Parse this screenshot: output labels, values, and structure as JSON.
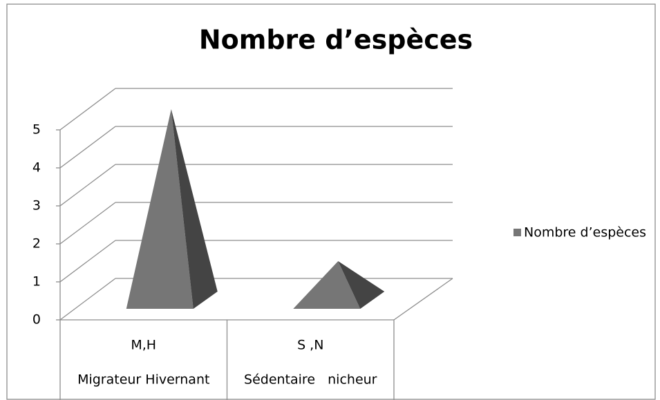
{
  "chart_data": {
    "type": "pyramid3d",
    "title": "Nombre d’espèces",
    "categories": [
      "M,H",
      "S ,N"
    ],
    "category_groups": [
      "Migrateur Hivernant",
      "Sédentaire   nicheur"
    ],
    "series": [
      {
        "name": "Nombre d’espèces",
        "color": "#767676",
        "values": [
          5,
          1
        ]
      }
    ],
    "ylim": [
      0,
      5
    ],
    "yticks": [
      0,
      1,
      2,
      3,
      4,
      5
    ],
    "grid": true,
    "legend": "right"
  }
}
